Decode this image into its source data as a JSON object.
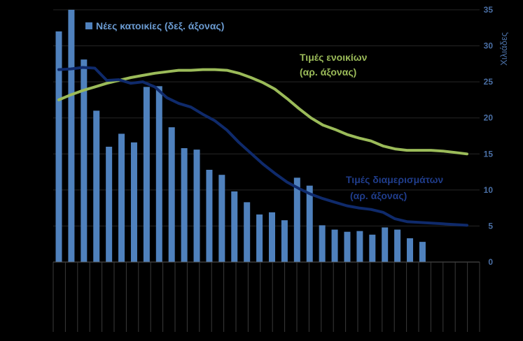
{
  "chart_data": {
    "type": "bar",
    "legend": "Νέες κατοικίες (δεξ. άξονας)",
    "right_axis_unit": "Χιλιάδες",
    "ylim": [
      0,
      35
    ],
    "yticks": [
      0,
      5,
      10,
      15,
      20,
      25,
      30,
      35
    ],
    "grid": true,
    "bars": {
      "name": "Νέες κατοικίες (δεξ. άξονας)",
      "color": "#4f81bd",
      "values": [
        32,
        35,
        28.1,
        21,
        16,
        17.8,
        16.6,
        24.3,
        24.4,
        18.7,
        15.8,
        15.6,
        12.8,
        12.1,
        9.8,
        8.3,
        6.6,
        6.9,
        5.8,
        11.7,
        10.6,
        5.1,
        4.5,
        4.2,
        4.3,
        3.8,
        4.8,
        4.5,
        3.3,
        2.8
      ]
    },
    "lines": [
      {
        "name": "Τιμές ενοικίων (αρ. άξονας)",
        "label_lines": [
          "Τιμές ενοικίων",
          "(αρ. άξονας)"
        ],
        "color": "#9bbb59",
        "values": [
          22.5,
          23.2,
          23.8,
          24.3,
          24.8,
          25.2,
          25.6,
          25.9,
          26.2,
          26.4,
          26.6,
          26.6,
          26.7,
          26.7,
          26.6,
          26.2,
          25.6,
          24.9,
          24.0,
          22.7,
          21.3,
          20.0,
          19.0,
          18.4,
          17.7,
          17.2,
          16.8,
          16.1,
          15.7,
          15.5,
          15.5,
          15.5,
          15.4,
          15.2,
          15.0
        ]
      },
      {
        "name": "Τιμές διαμερισμάτων (αρ. άξονας)",
        "label_lines": [
          "Τιμές διαμερισμάτων",
          "(αρ. άξονας)"
        ],
        "color": "#0f2a6b",
        "values": [
          26.7,
          26.8,
          27.0,
          26.9,
          25.2,
          25.3,
          24.8,
          25.0,
          24.3,
          22.8,
          22.0,
          21.5,
          20.5,
          19.6,
          18.3,
          16.6,
          15.1,
          13.6,
          12.3,
          11.1,
          10.2,
          9.4,
          8.8,
          8.3,
          7.8,
          7.5,
          7.3,
          6.9,
          6.0,
          5.6,
          5.5,
          5.4,
          5.3,
          5.2,
          5.1
        ]
      }
    ]
  }
}
